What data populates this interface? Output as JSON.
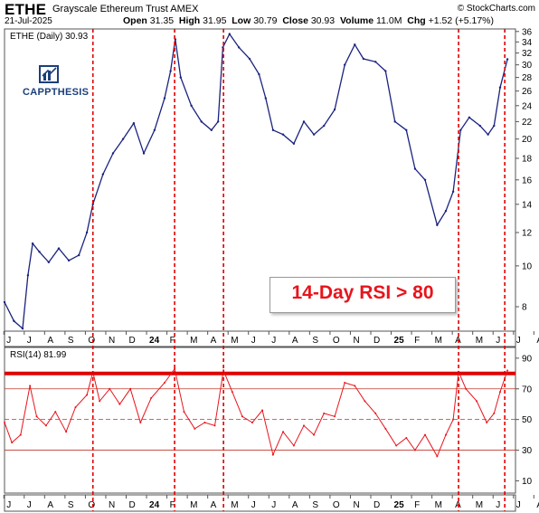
{
  "header": {
    "symbol": "ETHE",
    "name": "Grayscale Ethereum Trust",
    "exchange": "AMEX",
    "date": "21-Jul-2025",
    "open_label": "Open",
    "open": "31.35",
    "high_label": "High",
    "high": "31.95",
    "low_label": "Low",
    "low": "30.79",
    "close_label": "Close",
    "close": "30.93",
    "volume_label": "Volume",
    "volume": "11.0M",
    "chg_label": "Chg",
    "chg": "+1.52 (+5.17%)",
    "source": "© StockCharts.com"
  },
  "brand": {
    "name": "CAPPTHESIS",
    "color": "#1b3f7a"
  },
  "annotation": {
    "text": "14-Day RSI > 80",
    "color": "#e8141c"
  },
  "chart_data": [
    {
      "type": "line",
      "legend": "ETHE (Daily) 30.93",
      "ylim": [
        7,
        36.5
      ],
      "y_scale": "log",
      "y_ticks": [
        8,
        10,
        12,
        14,
        16,
        18,
        20,
        22,
        24,
        26,
        28,
        30,
        32,
        34,
        36
      ],
      "x_months": [
        "J",
        "J",
        "A",
        "S",
        "O",
        "N",
        "D",
        "24",
        "F",
        "M",
        "A",
        "M",
        "J",
        "J",
        "A",
        "S",
        "O",
        "N",
        "D",
        "25",
        "F",
        "M",
        "A",
        "M",
        "J",
        "J",
        "A"
      ],
      "x_start": "2023-07-01",
      "x_end": "2025-07-21",
      "line_color": "#1a237e",
      "grid": false,
      "points": [
        [
          "2023-07-01",
          8.2
        ],
        [
          "2023-07-15",
          7.4
        ],
        [
          "2023-07-28",
          7.1
        ],
        [
          "2023-08-05",
          9.5
        ],
        [
          "2023-08-12",
          11.3
        ],
        [
          "2023-08-22",
          10.8
        ],
        [
          "2023-09-05",
          10.2
        ],
        [
          "2023-09-20",
          11.0
        ],
        [
          "2023-10-05",
          10.3
        ],
        [
          "2023-10-20",
          10.6
        ],
        [
          "2023-11-01",
          12.0
        ],
        [
          "2023-11-10",
          14.0
        ],
        [
          "2023-11-25",
          16.5
        ],
        [
          "2023-12-10",
          18.5
        ],
        [
          "2023-12-25",
          20.0
        ],
        [
          "2024-01-10",
          21.8
        ],
        [
          "2024-01-25",
          18.5
        ],
        [
          "2024-02-10",
          21.0
        ],
        [
          "2024-02-25",
          25.0
        ],
        [
          "2024-03-05",
          29.0
        ],
        [
          "2024-03-12",
          34.5
        ],
        [
          "2024-03-20",
          28.0
        ],
        [
          "2024-04-05",
          24.0
        ],
        [
          "2024-04-20",
          22.0
        ],
        [
          "2024-05-05",
          21.0
        ],
        [
          "2024-05-15",
          22.0
        ],
        [
          "2024-05-22",
          33.0
        ],
        [
          "2024-06-01",
          35.5
        ],
        [
          "2024-06-15",
          33.0
        ],
        [
          "2024-07-01",
          31.0
        ],
        [
          "2024-07-15",
          28.5
        ],
        [
          "2024-07-25",
          25.0
        ],
        [
          "2024-08-05",
          21.0
        ],
        [
          "2024-08-20",
          20.5
        ],
        [
          "2024-09-05",
          19.5
        ],
        [
          "2024-09-20",
          22.0
        ],
        [
          "2024-10-05",
          20.5
        ],
        [
          "2024-10-20",
          21.5
        ],
        [
          "2024-11-05",
          23.5
        ],
        [
          "2024-11-20",
          30.0
        ],
        [
          "2024-12-05",
          33.5
        ],
        [
          "2024-12-18",
          31.0
        ],
        [
          "2025-01-05",
          30.5
        ],
        [
          "2025-01-20",
          29.0
        ],
        [
          "2025-02-03",
          22.0
        ],
        [
          "2025-02-20",
          21.0
        ],
        [
          "2025-03-05",
          17.0
        ],
        [
          "2025-03-20",
          16.0
        ],
        [
          "2025-04-07",
          12.5
        ],
        [
          "2025-04-20",
          13.5
        ],
        [
          "2025-05-01",
          15.0
        ],
        [
          "2025-05-12",
          21.0
        ],
        [
          "2025-05-25",
          22.5
        ],
        [
          "2025-06-10",
          21.5
        ],
        [
          "2025-06-22",
          20.5
        ],
        [
          "2025-07-01",
          21.5
        ],
        [
          "2025-07-10",
          26.5
        ],
        [
          "2025-07-21",
          30.93
        ]
      ],
      "signal_dates": [
        "2023-11-10",
        "2024-03-11",
        "2024-05-23",
        "2025-05-09",
        "2025-07-17"
      ],
      "signal_color": "#e00000"
    },
    {
      "type": "line",
      "legend": "RSI(14) 81.99",
      "ylim": [
        2,
        97
      ],
      "y_ticks": [
        10,
        30,
        50,
        70,
        90
      ],
      "levels": [
        30,
        50,
        70
      ],
      "highlight_level": 80,
      "line_color": "#e8141c",
      "points": [
        [
          "2023-07-01",
          48
        ],
        [
          "2023-07-12",
          35
        ],
        [
          "2023-07-25",
          40
        ],
        [
          "2023-08-08",
          72
        ],
        [
          "2023-08-18",
          52
        ],
        [
          "2023-09-01",
          46
        ],
        [
          "2023-09-15",
          55
        ],
        [
          "2023-10-01",
          42
        ],
        [
          "2023-10-15",
          58
        ],
        [
          "2023-11-01",
          66
        ],
        [
          "2023-11-10",
          81
        ],
        [
          "2023-11-20",
          62
        ],
        [
          "2023-12-05",
          70
        ],
        [
          "2023-12-20",
          60
        ],
        [
          "2024-01-05",
          70
        ],
        [
          "2024-01-20",
          48
        ],
        [
          "2024-02-05",
          64
        ],
        [
          "2024-02-25",
          74
        ],
        [
          "2024-03-11",
          83
        ],
        [
          "2024-03-25",
          55
        ],
        [
          "2024-04-10",
          44
        ],
        [
          "2024-04-25",
          48
        ],
        [
          "2024-05-10",
          46
        ],
        [
          "2024-05-23",
          82
        ],
        [
          "2024-06-05",
          68
        ],
        [
          "2024-06-20",
          52
        ],
        [
          "2024-07-05",
          48
        ],
        [
          "2024-07-20",
          56
        ],
        [
          "2024-08-05",
          27
        ],
        [
          "2024-08-20",
          42
        ],
        [
          "2024-09-05",
          33
        ],
        [
          "2024-09-20",
          46
        ],
        [
          "2024-10-05",
          40
        ],
        [
          "2024-10-20",
          54
        ],
        [
          "2024-11-05",
          52
        ],
        [
          "2024-11-20",
          74
        ],
        [
          "2024-12-05",
          72
        ],
        [
          "2024-12-20",
          62
        ],
        [
          "2025-01-05",
          54
        ],
        [
          "2025-01-20",
          44
        ],
        [
          "2025-02-05",
          33
        ],
        [
          "2025-02-20",
          38
        ],
        [
          "2025-03-05",
          30
        ],
        [
          "2025-03-20",
          40
        ],
        [
          "2025-04-07",
          26
        ],
        [
          "2025-04-20",
          40
        ],
        [
          "2025-05-01",
          50
        ],
        [
          "2025-05-09",
          81
        ],
        [
          "2025-05-20",
          70
        ],
        [
          "2025-06-05",
          62
        ],
        [
          "2025-06-20",
          48
        ],
        [
          "2025-07-01",
          54
        ],
        [
          "2025-07-10",
          68
        ],
        [
          "2025-07-21",
          81.99
        ]
      ]
    }
  ]
}
